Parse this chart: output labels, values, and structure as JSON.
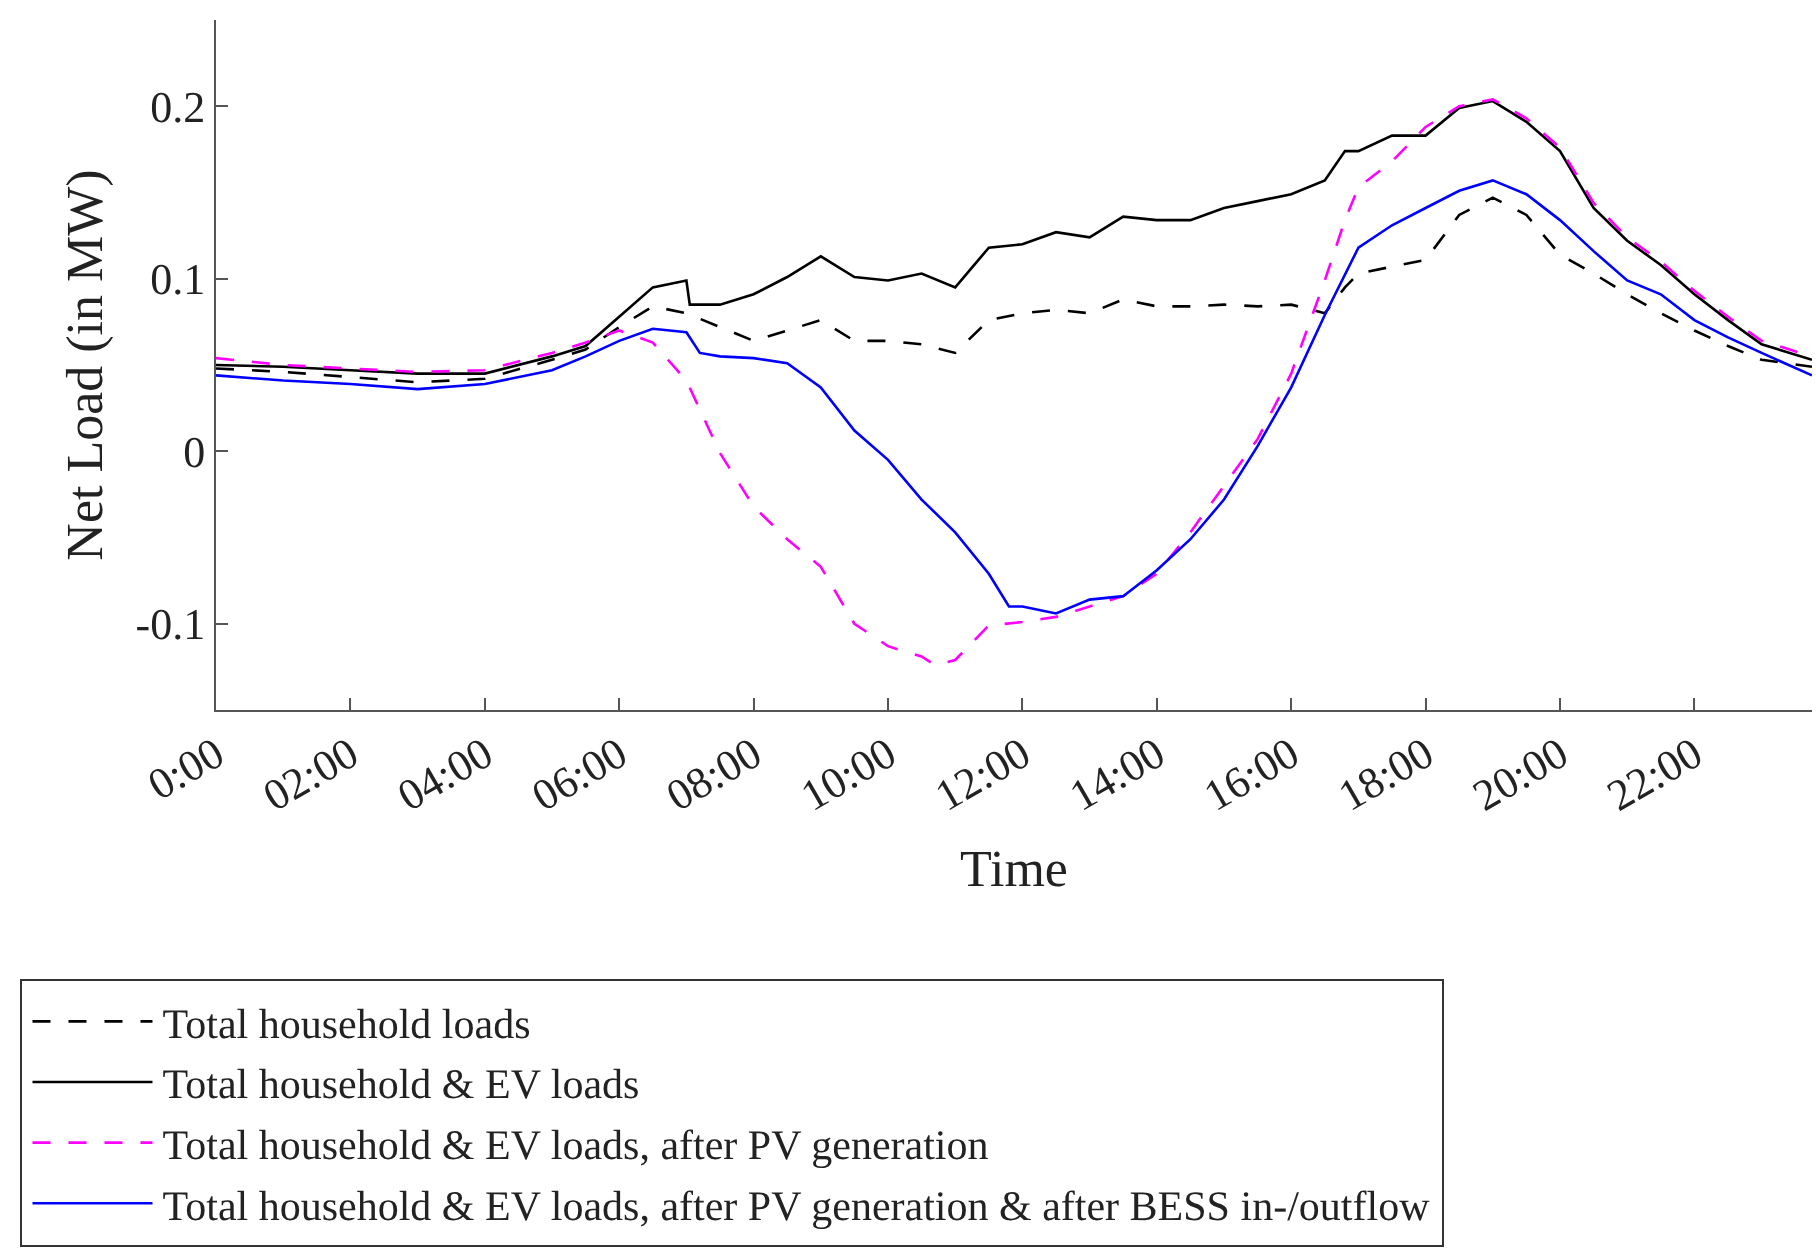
{
  "chart_data": {
    "type": "line",
    "xlabel": "Time",
    "ylabel": "Net Load (in MW)",
    "xlim": [
      0,
      23.75
    ],
    "ylim": [
      -0.15,
      0.25
    ],
    "xticks": [
      {
        "value": 0,
        "label": "0:00"
      },
      {
        "value": 2,
        "label": "02:00"
      },
      {
        "value": 4,
        "label": "04:00"
      },
      {
        "value": 6,
        "label": "06:00"
      },
      {
        "value": 8,
        "label": "08:00"
      },
      {
        "value": 10,
        "label": "10:00"
      },
      {
        "value": 12,
        "label": "12:00"
      },
      {
        "value": 14,
        "label": "14:00"
      },
      {
        "value": 16,
        "label": "16:00"
      },
      {
        "value": 18,
        "label": "18:00"
      },
      {
        "value": 20,
        "label": "20:00"
      },
      {
        "value": 22,
        "label": "22:00"
      }
    ],
    "yticks": [
      -0.1,
      0,
      0.1,
      0.2
    ],
    "legend": "bottom",
    "marker": "none",
    "series": [
      {
        "name": "Total household loads",
        "color": "#000000",
        "line_style": "dashed",
        "x": [
          0,
          1,
          2,
          3,
          4,
          5,
          5.5,
          6,
          6.5,
          7,
          7.5,
          8,
          8.5,
          9,
          9.5,
          10,
          10.5,
          11,
          11.5,
          12,
          12.5,
          13,
          13.5,
          14,
          14.5,
          15,
          15.5,
          16,
          16.5,
          16.8,
          17,
          17.5,
          18,
          18.5,
          19,
          19.5,
          20,
          20.5,
          21,
          21.5,
          22,
          22.5,
          23,
          23.75
        ],
        "values": [
          0.048,
          0.046,
          0.043,
          0.04,
          0.042,
          0.053,
          0.059,
          0.072,
          0.084,
          0.08,
          0.072,
          0.064,
          0.07,
          0.076,
          0.064,
          0.064,
          0.062,
          0.057,
          0.076,
          0.08,
          0.082,
          0.08,
          0.088,
          0.084,
          0.084,
          0.085,
          0.084,
          0.085,
          0.08,
          0.095,
          0.103,
          0.107,
          0.111,
          0.137,
          0.147,
          0.137,
          0.114,
          0.103,
          0.091,
          0.08,
          0.07,
          0.061,
          0.053,
          0.049
        ]
      },
      {
        "name": "Total household & EV loads",
        "color": "#000000",
        "line_style": "solid",
        "x": [
          0,
          1,
          2,
          3,
          4,
          5,
          5.5,
          6,
          6.5,
          7,
          7.05,
          7.5,
          8,
          8.5,
          9,
          9.5,
          10,
          10.5,
          11,
          11.5,
          12,
          12.5,
          13,
          13.5,
          14,
          14.5,
          15,
          15.5,
          16,
          16.5,
          16.8,
          17,
          17.5,
          18,
          18.5,
          19,
          19.5,
          20,
          20.5,
          21,
          21.5,
          22,
          22.5,
          23,
          23.75
        ],
        "values": [
          0.05,
          0.049,
          0.047,
          0.045,
          0.045,
          0.055,
          0.061,
          0.078,
          0.095,
          0.099,
          0.085,
          0.085,
          0.091,
          0.101,
          0.113,
          0.101,
          0.099,
          0.103,
          0.095,
          0.118,
          0.12,
          0.127,
          0.124,
          0.136,
          0.134,
          0.134,
          0.141,
          0.145,
          0.149,
          0.157,
          0.174,
          0.174,
          0.183,
          0.183,
          0.199,
          0.203,
          0.191,
          0.174,
          0.141,
          0.122,
          0.108,
          0.091,
          0.076,
          0.062,
          0.053
        ]
      },
      {
        "name": "Total household & EV loads, after PV generation",
        "color": "#ff00ff",
        "line_style": "dashed",
        "x": [
          0,
          1,
          2,
          3,
          4,
          5,
          5.5,
          6,
          6.5,
          7,
          7.5,
          8,
          8.5,
          9,
          9.5,
          10,
          10.5,
          10.7,
          11,
          11.5,
          12,
          12.5,
          13,
          13.5,
          14,
          14.5,
          15,
          15.5,
          16,
          16.5,
          16.8,
          17,
          17.5,
          18,
          18.5,
          19,
          19.5,
          20,
          20.5,
          21,
          21.5,
          22,
          22.5,
          23,
          23.75
        ],
        "values": [
          0.054,
          0.05,
          0.048,
          0.046,
          0.047,
          0.057,
          0.063,
          0.07,
          0.063,
          0.041,
          -0.001,
          -0.032,
          -0.051,
          -0.067,
          -0.1,
          -0.113,
          -0.119,
          -0.124,
          -0.121,
          -0.101,
          -0.099,
          -0.096,
          -0.09,
          -0.084,
          -0.071,
          -0.047,
          -0.02,
          0.007,
          0.045,
          0.099,
          0.134,
          0.153,
          0.168,
          0.188,
          0.2,
          0.204,
          0.193,
          0.176,
          0.144,
          0.124,
          0.11,
          0.093,
          0.078,
          0.064,
          0.055
        ]
      },
      {
        "name": "Total household & EV loads, after PV generation & after BESS in-/outflow",
        "color": "#0000ff",
        "line_style": "solid",
        "x": [
          0,
          1,
          2,
          3,
          4,
          5,
          5.5,
          6,
          6.5,
          7,
          7.2,
          7.5,
          8,
          8.5,
          9,
          9.5,
          10,
          10.5,
          11,
          11.5,
          11.8,
          12,
          12.5,
          13,
          13.5,
          14,
          14.5,
          15,
          15.5,
          16,
          16.5,
          17,
          17.5,
          18,
          18.5,
          19,
          19.5,
          20,
          20.5,
          21,
          21.5,
          22,
          22.5,
          23,
          23.75
        ],
        "values": [
          0.044,
          0.041,
          0.039,
          0.036,
          0.039,
          0.047,
          0.055,
          0.064,
          0.071,
          0.069,
          0.057,
          0.055,
          0.054,
          0.051,
          0.037,
          0.012,
          -0.005,
          -0.028,
          -0.047,
          -0.071,
          -0.09,
          -0.09,
          -0.094,
          -0.086,
          -0.084,
          -0.069,
          -0.051,
          -0.028,
          0.003,
          0.037,
          0.079,
          0.118,
          0.131,
          0.141,
          0.151,
          0.157,
          0.149,
          0.134,
          0.116,
          0.099,
          0.091,
          0.076,
          0.066,
          0.057,
          0.044
        ]
      }
    ]
  }
}
